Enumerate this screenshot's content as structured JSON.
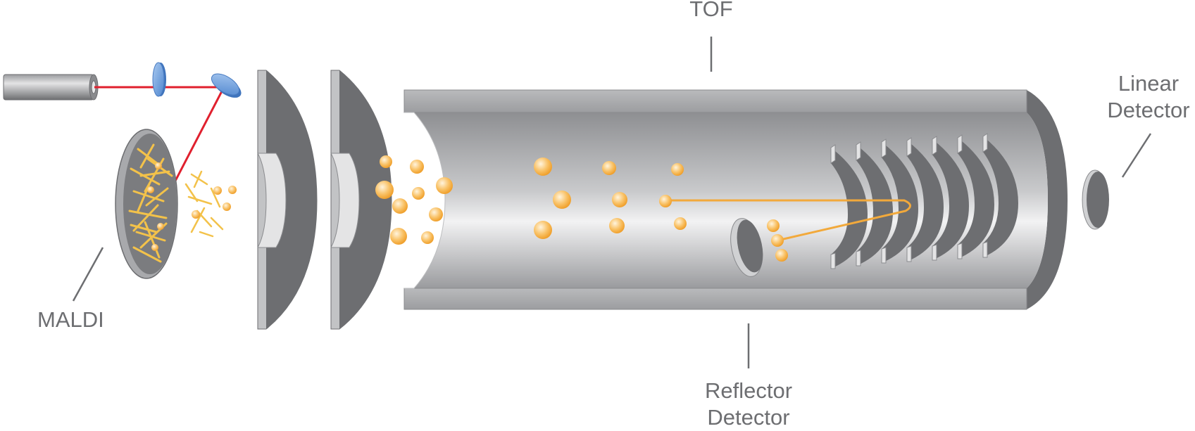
{
  "labels": {
    "tof": "TOF",
    "maldi": "MALDI",
    "linear_line1": "Linear",
    "linear_line2": "Detector",
    "reflector_line1": "Reflector",
    "reflector_line2": "Detector"
  },
  "colors": {
    "laser_beam": "#e0202e",
    "ion": "#f5a623",
    "ion_path": "#f2a93b",
    "metal_dark": "#6d6e71",
    "metal_light": "#c8c9cb",
    "mirror": "#6fa3dc",
    "matrix_crystals": "#f3c24a",
    "label_text": "#6d6e71"
  }
}
